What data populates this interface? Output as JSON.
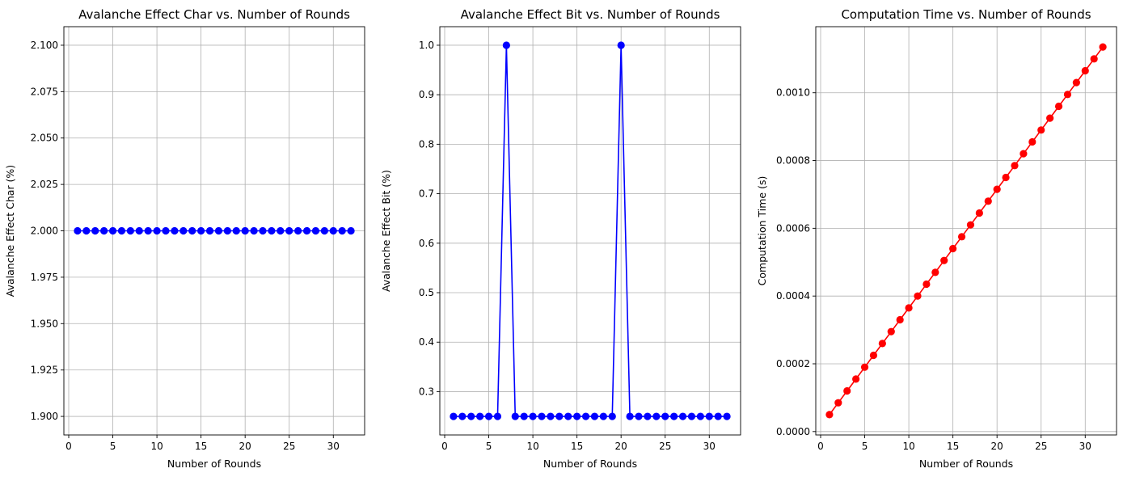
{
  "chart_data": [
    {
      "type": "line",
      "title": "Avalanche Effect Char vs. Number of Rounds",
      "xlabel": "Number of Rounds",
      "ylabel": "Avalanche Effect Char (%)",
      "xlim": [
        -0.55,
        33.55
      ],
      "ylim": [
        1.89,
        2.11
      ],
      "xticks": [
        0,
        5,
        10,
        15,
        20,
        25,
        30
      ],
      "xtick_labels": [
        "0",
        "5",
        "10",
        "15",
        "20",
        "25",
        "30"
      ],
      "yticks": [
        1.9,
        1.925,
        1.95,
        1.975,
        2.0,
        2.025,
        2.05,
        2.075,
        2.1
      ],
      "ytick_labels": [
        "1.900",
        "1.925",
        "1.950",
        "1.975",
        "2.000",
        "2.025",
        "2.050",
        "2.075",
        "2.100"
      ],
      "grid": true,
      "color": "#0000ff",
      "marker": "circle",
      "x": [
        1,
        2,
        3,
        4,
        5,
        6,
        7,
        8,
        9,
        10,
        11,
        12,
        13,
        14,
        15,
        16,
        17,
        18,
        19,
        20,
        21,
        22,
        23,
        24,
        25,
        26,
        27,
        28,
        29,
        30,
        31,
        32
      ],
      "y": [
        2.0,
        2.0,
        2.0,
        2.0,
        2.0,
        2.0,
        2.0,
        2.0,
        2.0,
        2.0,
        2.0,
        2.0,
        2.0,
        2.0,
        2.0,
        2.0,
        2.0,
        2.0,
        2.0,
        2.0,
        2.0,
        2.0,
        2.0,
        2.0,
        2.0,
        2.0,
        2.0,
        2.0,
        2.0,
        2.0,
        2.0,
        2.0
      ]
    },
    {
      "type": "line",
      "title": "Avalanche Effect Bit vs. Number of Rounds",
      "xlabel": "Number of Rounds",
      "ylabel": "Avalanche Effect Bit (%)",
      "xlim": [
        -0.55,
        33.55
      ],
      "ylim": [
        0.2125,
        1.0375
      ],
      "xticks": [
        0,
        5,
        10,
        15,
        20,
        25,
        30
      ],
      "xtick_labels": [
        "0",
        "5",
        "10",
        "15",
        "20",
        "25",
        "30"
      ],
      "yticks": [
        0.3,
        0.4,
        0.5,
        0.6,
        0.7,
        0.8,
        0.9,
        1.0
      ],
      "ytick_labels": [
        "0.3",
        "0.4",
        "0.5",
        "0.6",
        "0.7",
        "0.8",
        "0.9",
        "1.0"
      ],
      "grid": true,
      "color": "#0000ff",
      "marker": "circle",
      "x": [
        1,
        2,
        3,
        4,
        5,
        6,
        7,
        8,
        9,
        10,
        11,
        12,
        13,
        14,
        15,
        16,
        17,
        18,
        19,
        20,
        21,
        22,
        23,
        24,
        25,
        26,
        27,
        28,
        29,
        30,
        31,
        32
      ],
      "y": [
        0.25,
        0.25,
        0.25,
        0.25,
        0.25,
        0.25,
        1.0,
        0.25,
        0.25,
        0.25,
        0.25,
        0.25,
        0.25,
        0.25,
        0.25,
        0.25,
        0.25,
        0.25,
        0.25,
        1.0,
        0.25,
        0.25,
        0.25,
        0.25,
        0.25,
        0.25,
        0.25,
        0.25,
        0.25,
        0.25,
        0.25,
        0.25
      ]
    },
    {
      "type": "line",
      "title": "Computation Time vs. Number of Rounds",
      "xlabel": "Number of Rounds",
      "ylabel": "Computation Time (s)",
      "xlim": [
        -0.55,
        33.55
      ],
      "ylim": [
        -1e-05,
        0.001195
      ],
      "xticks": [
        0,
        5,
        10,
        15,
        20,
        25,
        30
      ],
      "xtick_labels": [
        "0",
        "5",
        "10",
        "15",
        "20",
        "25",
        "30"
      ],
      "yticks": [
        0.0,
        0.0002,
        0.0004,
        0.0006,
        0.0008,
        0.001
      ],
      "ytick_labels": [
        "0.0000",
        "0.0002",
        "0.0004",
        "0.0006",
        "0.0008",
        "0.0010"
      ],
      "grid": true,
      "color": "#ff0000",
      "marker": "circle",
      "x": [
        1,
        2,
        3,
        4,
        5,
        6,
        7,
        8,
        9,
        10,
        11,
        12,
        13,
        14,
        15,
        16,
        17,
        18,
        19,
        20,
        21,
        22,
        23,
        24,
        25,
        26,
        27,
        28,
        29,
        30,
        31,
        32
      ],
      "y": [
        5e-05,
        8.5e-05,
        0.00012,
        0.000155,
        0.00019,
        0.000225,
        0.00026,
        0.000295,
        0.00033,
        0.000365,
        0.0004,
        0.000435,
        0.00047,
        0.000505,
        0.00054,
        0.000575,
        0.00061,
        0.000645,
        0.00068,
        0.000715,
        0.00075,
        0.000785,
        0.00082,
        0.000855,
        0.00089,
        0.000925,
        0.00096,
        0.000995,
        0.00103,
        0.001065,
        0.0011,
        0.001135
      ]
    }
  ]
}
